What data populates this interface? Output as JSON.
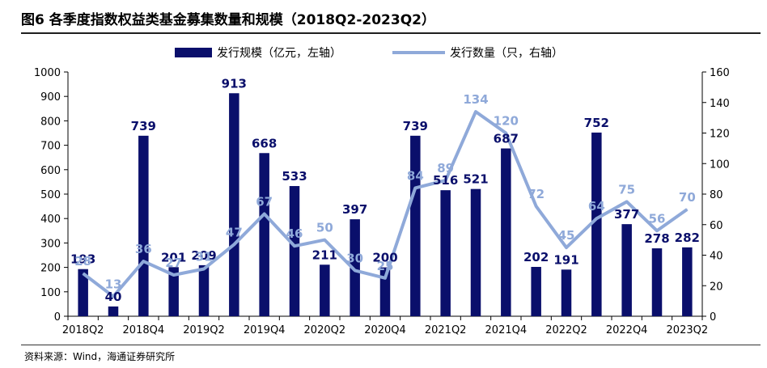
{
  "figure": {
    "title": "图6  各季度指数权益类基金募集数量和规模（2018Q2-2023Q2）",
    "source": "资料来源：Wind，海通证券研究所"
  },
  "colors": {
    "bar": "#0a0f6b",
    "line": "#8fa9d9",
    "bar_label": "#0a0f6b",
    "line_label": "#8fa9d9"
  },
  "chart_data": {
    "type": "bar",
    "categories": [
      "2018Q2",
      "2018Q3",
      "2018Q4",
      "2019Q1",
      "2019Q2",
      "2019Q3",
      "2019Q4",
      "2020Q1",
      "2020Q2",
      "2020Q3",
      "2020Q4",
      "2021Q1",
      "2021Q2",
      "2021Q3",
      "2021Q4",
      "2022Q1",
      "2022Q2",
      "2022Q3",
      "2022Q4",
      "2023Q1",
      "2023Q2"
    ],
    "x_tick_labels": [
      "2018Q2",
      "",
      "2018Q4",
      "",
      "2019Q2",
      "",
      "2019Q4",
      "",
      "2020Q2",
      "",
      "2020Q4",
      "",
      "2021Q2",
      "",
      "2021Q4",
      "",
      "2022Q2",
      "",
      "2022Q4",
      "",
      "2023Q2"
    ],
    "series": [
      {
        "name": "发行规模（亿元，左轴）",
        "type": "bar",
        "axis": "left",
        "values": [
          193,
          40,
          739,
          201,
          209,
          913,
          668,
          533,
          211,
          397,
          200,
          739,
          516,
          521,
          687,
          202,
          191,
          752,
          377,
          278,
          282
        ]
      },
      {
        "name": "发行数量（只，右轴）",
        "type": "line",
        "axis": "right",
        "values": [
          28,
          13,
          36,
          27,
          31,
          47,
          67,
          46,
          50,
          30,
          25,
          84,
          89,
          134,
          120,
          72,
          45,
          64,
          75,
          56,
          70
        ]
      }
    ],
    "ylim_left": [
      0,
      1000
    ],
    "yticks_left": [
      0,
      100,
      200,
      300,
      400,
      500,
      600,
      700,
      800,
      900,
      1000
    ],
    "ylim_right": [
      0,
      160
    ],
    "yticks_right": [
      0,
      20,
      40,
      60,
      80,
      100,
      120,
      140,
      160
    ],
    "grid": false,
    "legend": "top-center"
  }
}
